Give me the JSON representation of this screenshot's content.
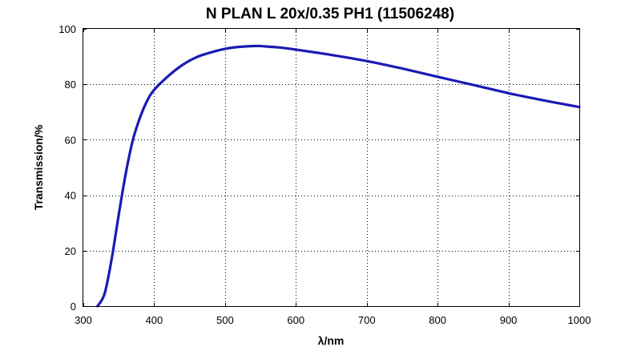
{
  "chart_data": {
    "type": "line",
    "title": "N PLAN L 20x/0.35 PH1 (11506248)",
    "xlabel": "λ/nm",
    "ylabel": "Transmission/%",
    "xlim": [
      300,
      1000
    ],
    "ylim": [
      0,
      100
    ],
    "xticks": [
      300,
      400,
      500,
      600,
      700,
      800,
      900,
      1000
    ],
    "yticks": [
      0,
      20,
      40,
      60,
      80,
      100
    ],
    "grid": true,
    "series_color": "#1a1ab4",
    "series": [
      {
        "x": [
          320,
          330,
          340,
          350,
          360,
          370,
          380,
          390,
          400,
          420,
          440,
          460,
          480,
          500,
          520,
          540,
          550,
          560,
          580,
          600,
          650,
          700,
          750,
          800,
          850,
          900,
          950,
          1000
        ],
        "values": [
          0,
          4.5,
          17,
          33,
          48,
          60,
          68,
          74,
          78,
          83,
          87,
          89.8,
          91.5,
          92.8,
          93.5,
          93.8,
          93.8,
          93.6,
          93.2,
          92.5,
          90.6,
          88.4,
          85.7,
          82.7,
          79.8,
          76.8,
          74.2,
          71.8
        ]
      }
    ]
  }
}
